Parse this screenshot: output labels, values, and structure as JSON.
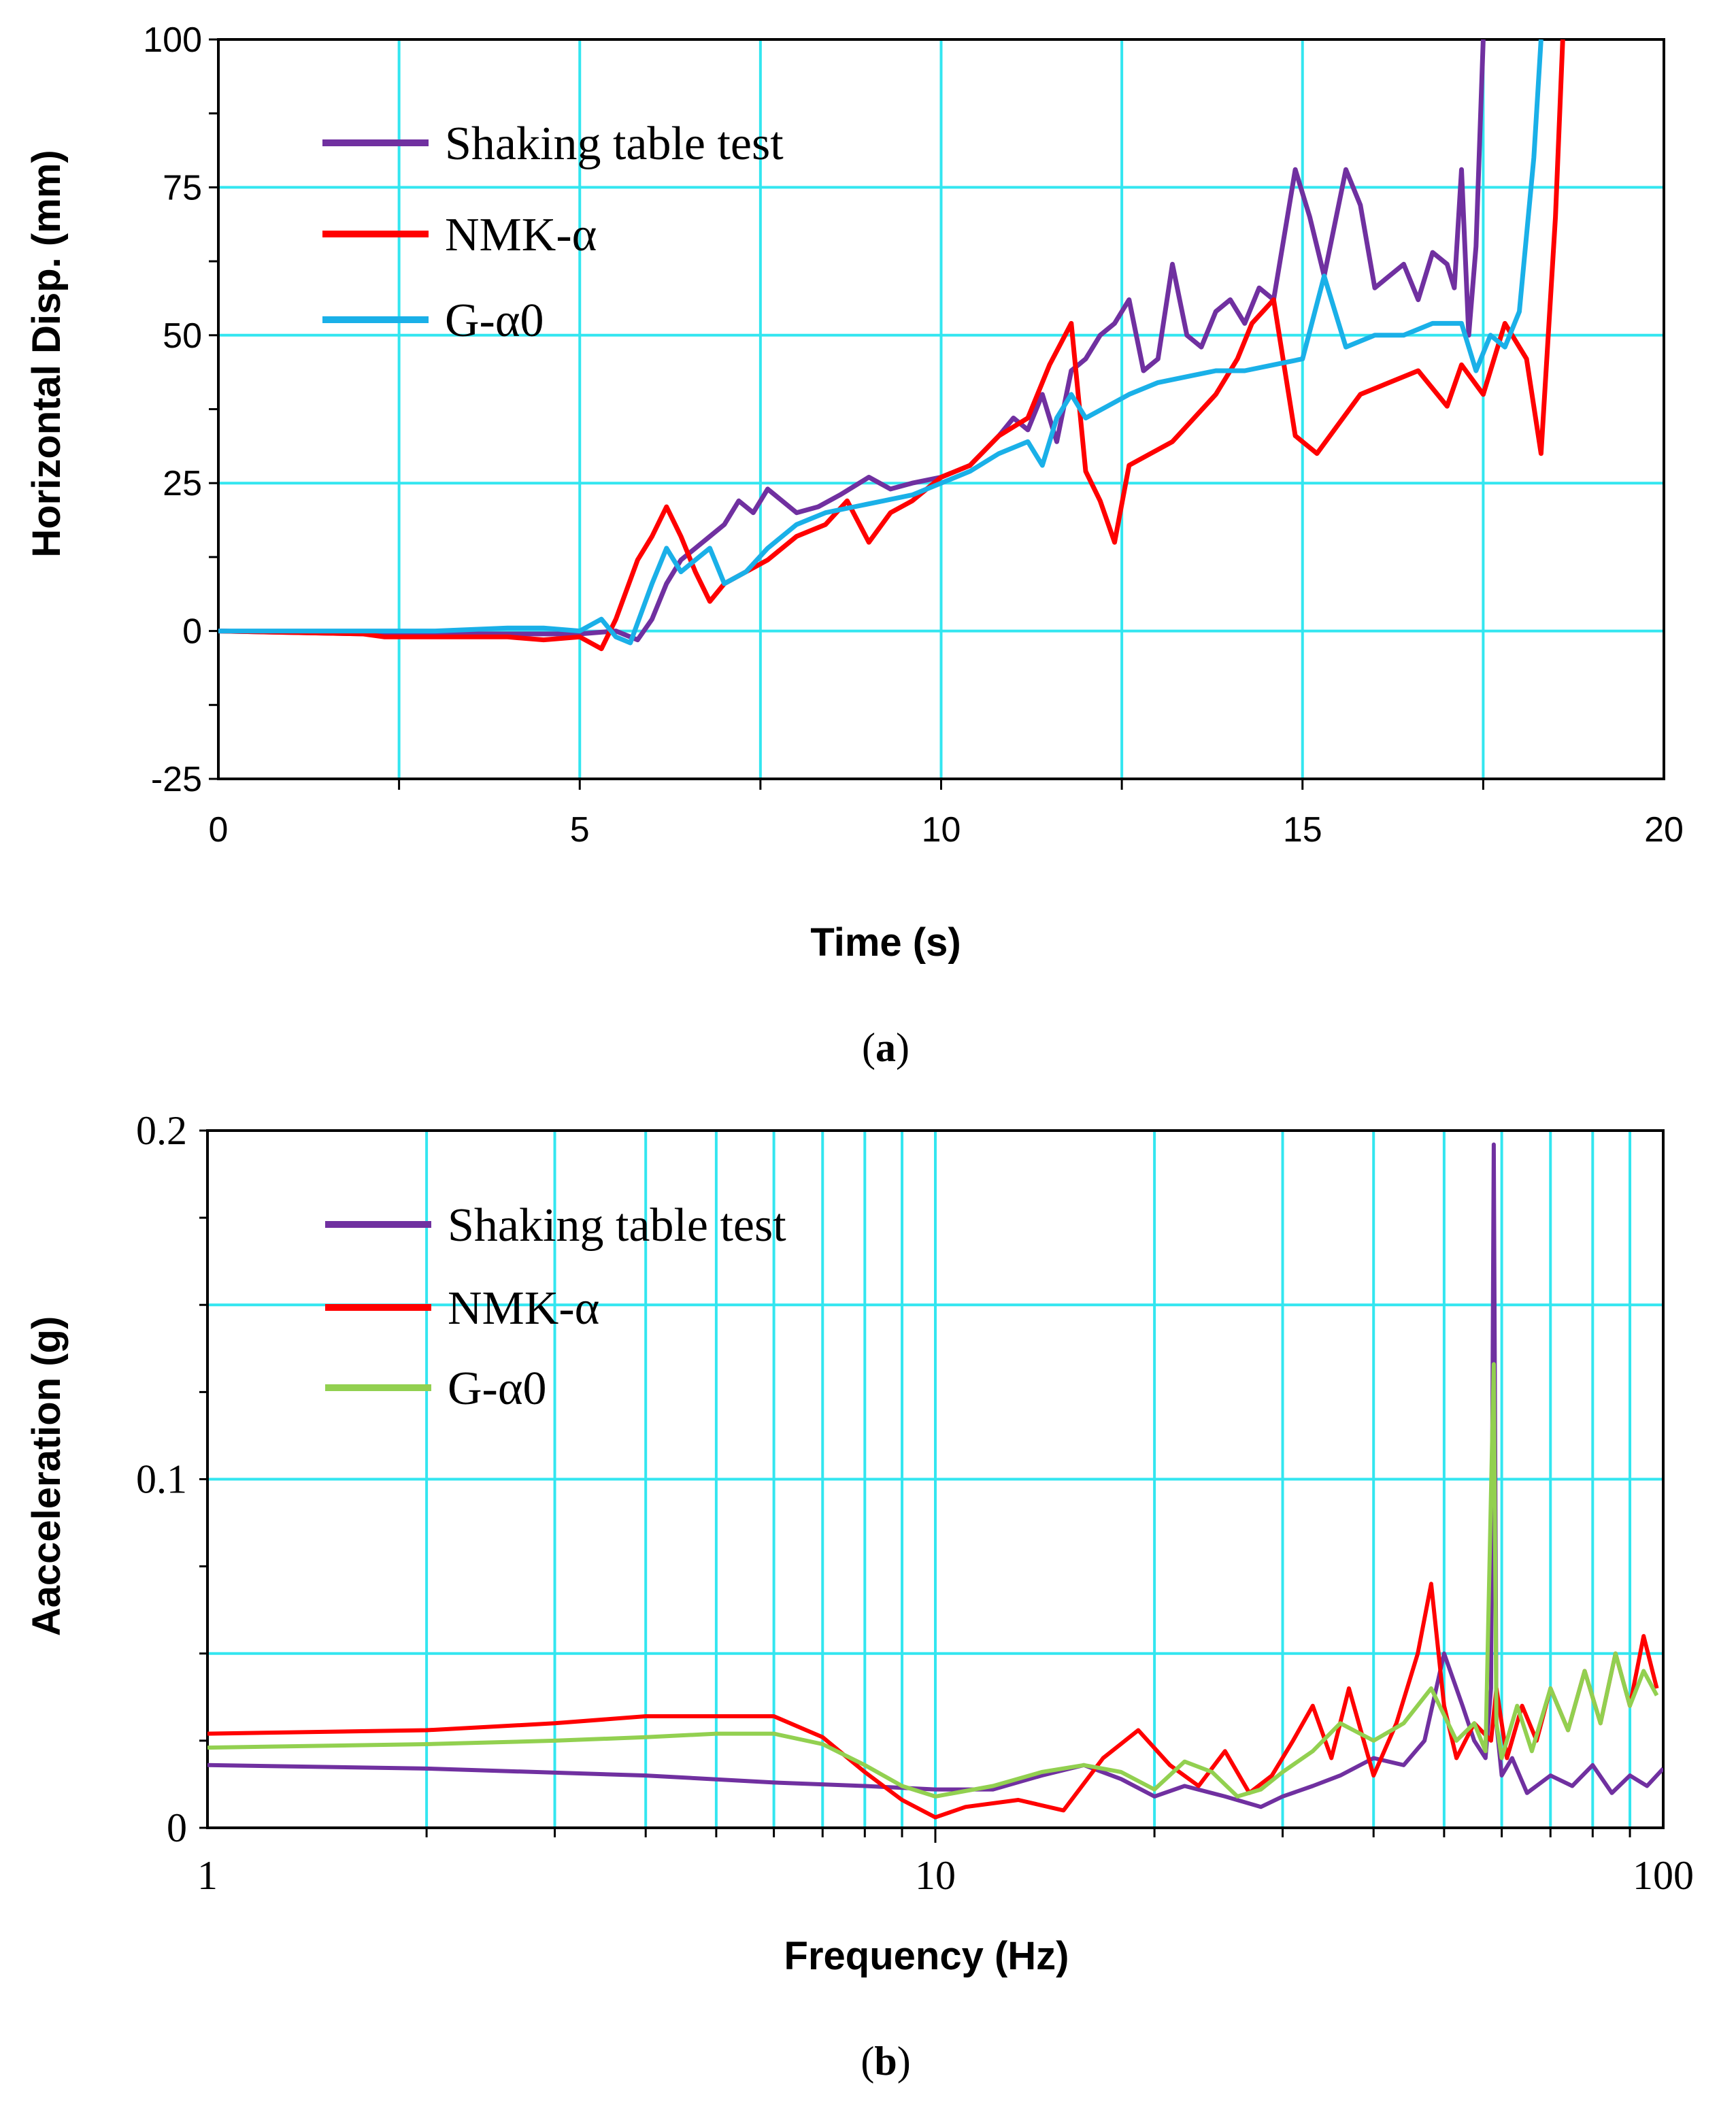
{
  "chart_data": [
    {
      "type": "line",
      "caption_letter": "a",
      "title": "",
      "xlabel": "Time (s)",
      "ylabel": "Horizontal Disp. (mm)",
      "xlim": [
        0,
        20
      ],
      "ylim": [
        -25,
        100
      ],
      "xticks": [
        "0",
        "5",
        "10",
        "15",
        "20"
      ],
      "yticks": [
        "-25",
        "0",
        "25",
        "50",
        "75",
        "100"
      ],
      "grid": true,
      "grid_color": "#33e6f0",
      "legend_position": "top-left",
      "series": [
        {
          "name": "Shaking table test",
          "color": "#7030a0",
          "x": [
            0,
            2,
            3,
            4,
            5,
            5.5,
            5.8,
            6.0,
            6.2,
            6.4,
            6.6,
            6.8,
            7.0,
            7.2,
            7.4,
            7.6,
            7.8,
            8.0,
            8.3,
            8.6,
            9.0,
            9.3,
            9.6,
            10.0,
            10.4,
            10.8,
            11.0,
            11.2,
            11.4,
            11.6,
            11.8,
            12.0,
            12.2,
            12.4,
            12.6,
            12.8,
            13.0,
            13.2,
            13.4,
            13.6,
            13.8,
            14.0,
            14.2,
            14.4,
            14.6,
            14.9,
            15.1,
            15.3,
            15.6,
            15.8,
            16.0,
            16.2,
            16.4,
            16.6,
            16.8,
            17.0,
            17.1,
            17.2,
            17.3,
            17.4,
            17.5
          ],
          "y": [
            0,
            -0.5,
            -0.5,
            -0.5,
            -0.5,
            0,
            -1.5,
            2,
            8,
            12,
            14,
            16,
            18,
            22,
            20,
            24,
            22,
            20,
            21,
            23,
            26,
            24,
            25,
            26,
            28,
            33,
            36,
            34,
            40,
            32,
            44,
            46,
            50,
            52,
            56,
            44,
            46,
            62,
            50,
            48,
            54,
            56,
            52,
            58,
            56,
            78,
            70,
            60,
            78,
            72,
            58,
            60,
            62,
            56,
            64,
            62,
            58,
            78,
            50,
            65,
            100
          ]
        },
        {
          "name": "NMK-α",
          "color": "#ff0000",
          "x": [
            0,
            2,
            2.3,
            3,
            4,
            4.5,
            5,
            5.3,
            5.5,
            5.8,
            6.0,
            6.2,
            6.4,
            6.6,
            6.8,
            7.0,
            7.3,
            7.6,
            8.0,
            8.4,
            8.7,
            9.0,
            9.3,
            9.6,
            10.0,
            10.4,
            10.8,
            11.2,
            11.5,
            11.8,
            12.0,
            12.2,
            12.4,
            12.6,
            12.9,
            13.2,
            13.5,
            13.8,
            14.1,
            14.3,
            14.6,
            14.9,
            15.2,
            15.5,
            15.8,
            16.2,
            16.6,
            17.0,
            17.2,
            17.5,
            17.8,
            18.1,
            18.3,
            18.5,
            18.6
          ],
          "y": [
            0,
            -0.5,
            -1,
            -1,
            -1,
            -1.5,
            -1,
            -3,
            2,
            12,
            16,
            21,
            16,
            10,
            5,
            8,
            10,
            12,
            16,
            18,
            22,
            15,
            20,
            22,
            26,
            28,
            33,
            36,
            45,
            52,
            27,
            22,
            15,
            28,
            30,
            32,
            36,
            40,
            46,
            52,
            56,
            33,
            30,
            35,
            40,
            42,
            44,
            38,
            45,
            40,
            52,
            46,
            30,
            70,
            100
          ]
        },
        {
          "name": "G-α0",
          "color": "#1ab0e8",
          "x": [
            0,
            2,
            3,
            4,
            4.5,
            5,
            5.3,
            5.5,
            5.7,
            6.0,
            6.2,
            6.4,
            6.6,
            6.8,
            7.0,
            7.3,
            7.6,
            8.0,
            8.4,
            8.8,
            9.2,
            9.6,
            10.0,
            10.4,
            10.8,
            11.2,
            11.4,
            11.6,
            11.8,
            12.0,
            12.3,
            12.6,
            13.0,
            13.4,
            13.8,
            14.2,
            14.6,
            15.0,
            15.3,
            15.6,
            16.0,
            16.4,
            16.8,
            17.2,
            17.4,
            17.6,
            17.8,
            18.0,
            18.2,
            18.3
          ],
          "y": [
            0,
            0,
            0,
            0.5,
            0.5,
            0,
            2,
            -1,
            -2,
            8,
            14,
            10,
            12,
            14,
            8,
            10,
            14,
            18,
            20,
            21,
            22,
            23,
            25,
            27,
            30,
            32,
            28,
            36,
            40,
            36,
            38,
            40,
            42,
            43,
            44,
            44,
            45,
            46,
            60,
            48,
            50,
            50,
            52,
            52,
            44,
            50,
            48,
            54,
            80,
            100
          ]
        }
      ]
    },
    {
      "type": "line",
      "caption_letter": "b",
      "title": "",
      "xlabel": "Frequency (Hz)",
      "ylabel": "Aacceleration (g)",
      "xscale": "log",
      "xlim": [
        1,
        100
      ],
      "ylim": [
        0,
        0.2
      ],
      "xticks": [
        "1",
        "10",
        "100"
      ],
      "yticks": [
        "0",
        "0.1",
        "0.2"
      ],
      "grid": true,
      "grid_color": "#33e6f0",
      "legend_position": "top-left",
      "series": [
        {
          "name": "Shaking table test",
          "color": "#7030a0",
          "x": [
            1,
            2,
            4,
            6,
            8,
            10,
            12,
            14,
            16,
            18,
            20,
            22,
            25,
            28,
            30,
            33,
            36,
            40,
            44,
            47,
            50,
            53,
            55,
            57,
            58,
            58.5,
            59,
            60,
            62,
            65,
            70,
            75,
            80,
            85,
            90,
            95,
            100
          ],
          "y": [
            0.018,
            0.017,
            0.015,
            0.013,
            0.012,
            0.011,
            0.011,
            0.015,
            0.018,
            0.014,
            0.009,
            0.012,
            0.009,
            0.006,
            0.009,
            0.012,
            0.015,
            0.02,
            0.018,
            0.025,
            0.05,
            0.035,
            0.025,
            0.02,
            0.04,
            0.196,
            0.03,
            0.015,
            0.02,
            0.01,
            0.015,
            0.012,
            0.018,
            0.01,
            0.015,
            0.012,
            0.017
          ]
        },
        {
          "name": "NMK-α",
          "color": "#ff0000",
          "x": [
            1,
            2,
            3,
            4,
            5,
            6,
            7,
            8,
            9,
            10,
            11,
            13,
            15,
            17,
            19,
            21,
            23,
            25,
            27,
            29,
            31,
            33,
            35,
            37,
            40,
            43,
            46,
            48,
            50,
            52,
            55,
            58,
            59,
            61,
            64,
            67,
            70,
            74,
            78,
            82,
            86,
            90,
            94,
            98
          ],
          "y": [
            0.027,
            0.028,
            0.03,
            0.032,
            0.032,
            0.032,
            0.026,
            0.016,
            0.008,
            0.003,
            0.006,
            0.008,
            0.005,
            0.02,
            0.028,
            0.018,
            0.012,
            0.022,
            0.01,
            0.015,
            0.025,
            0.035,
            0.02,
            0.04,
            0.015,
            0.03,
            0.05,
            0.07,
            0.035,
            0.02,
            0.03,
            0.025,
            0.04,
            0.02,
            0.035,
            0.025,
            0.04,
            0.028,
            0.045,
            0.03,
            0.05,
            0.035,
            0.055,
            0.04
          ]
        },
        {
          "name": "G-α0",
          "color": "#92d050",
          "x": [
            1,
            2,
            3,
            4,
            5,
            6,
            7,
            8,
            9,
            10,
            12,
            14,
            16,
            18,
            20,
            22,
            24,
            26,
            28,
            30,
            33,
            36,
            40,
            44,
            48,
            52,
            55,
            57,
            58.5,
            59,
            60,
            63,
            66,
            70,
            74,
            78,
            82,
            86,
            90,
            94,
            98
          ],
          "y": [
            0.023,
            0.024,
            0.025,
            0.026,
            0.027,
            0.027,
            0.024,
            0.018,
            0.012,
            0.009,
            0.012,
            0.016,
            0.018,
            0.016,
            0.011,
            0.019,
            0.016,
            0.009,
            0.011,
            0.016,
            0.022,
            0.03,
            0.025,
            0.03,
            0.04,
            0.025,
            0.03,
            0.022,
            0.133,
            0.03,
            0.02,
            0.035,
            0.022,
            0.04,
            0.028,
            0.045,
            0.03,
            0.05,
            0.035,
            0.045,
            0.038
          ]
        }
      ]
    }
  ]
}
